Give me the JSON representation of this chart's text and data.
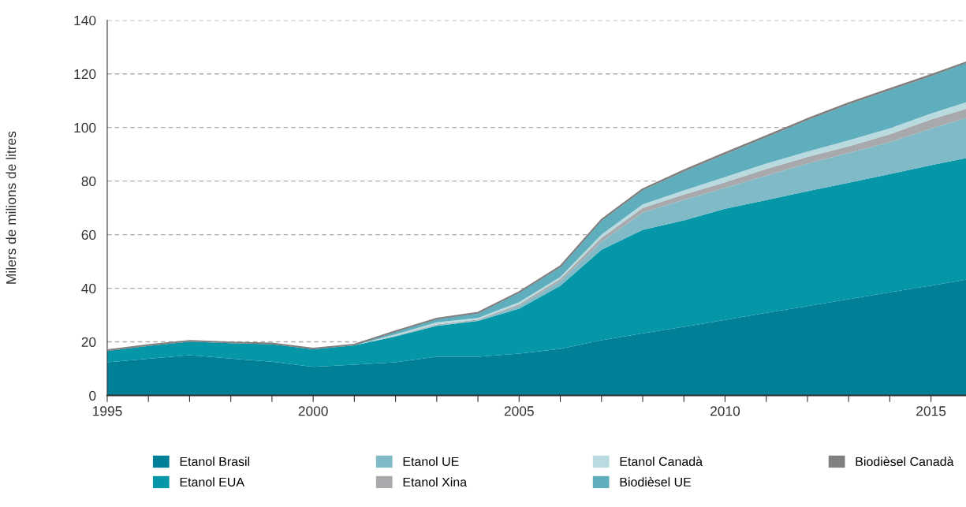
{
  "chart_data": {
    "type": "area",
    "stacked": true,
    "ylabel": "Milers de milions de litres",
    "x": [
      1995,
      1996,
      1997,
      1998,
      1999,
      2000,
      2001,
      2002,
      2003,
      2004,
      2005,
      2006,
      2007,
      2008,
      2009,
      2010,
      2011,
      2012,
      2013,
      2014,
      2015,
      2015.85
    ],
    "series": [
      {
        "name": "Etanol Brasil",
        "color": "#007f96",
        "values": [
          12.4,
          13.7,
          15.0,
          13.8,
          12.6,
          10.7,
          11.5,
          12.4,
          14.4,
          14.4,
          15.6,
          17.4,
          20.6,
          23.2,
          25.6,
          28.2,
          30.8,
          33.3,
          35.9,
          38.5,
          41.0,
          43.2
        ]
      },
      {
        "name": "Etanol EUA",
        "color": "#0596a8",
        "values": [
          4.2,
          4.8,
          5.1,
          5.7,
          6.5,
          6.5,
          7.2,
          9.6,
          11.6,
          13.4,
          16.8,
          23.5,
          33.8,
          38.6,
          39.7,
          41.5,
          42.1,
          42.9,
          43.5,
          44.1,
          44.9,
          45.4
        ]
      },
      {
        "name": "Etanol UE",
        "color": "#80bac6",
        "values": [
          0,
          0,
          0,
          0,
          0,
          0,
          0,
          0.2,
          0.2,
          0.2,
          0.9,
          1.7,
          3.0,
          6.4,
          7.7,
          7.8,
          9.1,
          10.3,
          11.1,
          11.9,
          13.6,
          14.9
        ]
      },
      {
        "name": "Etanol Xina",
        "color": "#a7a9ac",
        "values": [
          0,
          0,
          0,
          0,
          0,
          0,
          0,
          0.2,
          0.3,
          0.3,
          0.7,
          0.9,
          1.4,
          1.8,
          2.0,
          2.0,
          2.5,
          2.5,
          2.5,
          3.0,
          3.5,
          3.5
        ]
      },
      {
        "name": "Etanol Canadà",
        "color": "#b9dbe0",
        "values": [
          0,
          0,
          0,
          0,
          0,
          0,
          0,
          0.4,
          0.8,
          0.6,
          0.8,
          0.7,
          1.2,
          1.3,
          1.5,
          2.0,
          2.0,
          2.0,
          2.2,
          2.2,
          2.2,
          2.4
        ]
      },
      {
        "name": "Biodièsel UE",
        "color": "#5eaebd",
        "values": [
          0.2,
          0.2,
          0.2,
          0.2,
          0.2,
          0.2,
          0.2,
          1.0,
          1.1,
          1.7,
          3.5,
          3.6,
          5.2,
          5.3,
          7.0,
          8.5,
          9.8,
          11.7,
          13.4,
          14.2,
          13.9,
          14.6
        ]
      },
      {
        "name": "Biodièsel Canadà",
        "color": "#808080",
        "values": [
          0.1,
          0.1,
          0.1,
          0.1,
          0.1,
          0.1,
          0.1,
          0.2,
          0.3,
          0.3,
          0.3,
          0.4,
          0.4,
          0.4,
          0.5,
          0.5,
          0.5,
          0.5,
          0.5,
          0.5,
          0.5,
          0.3
        ]
      }
    ],
    "xlim": [
      1995,
      2015.85
    ],
    "xticks": [
      1995,
      {
        "value": 1996,
        "label": null
      },
      {
        "value": 1997,
        "label": null
      },
      {
        "value": 1998,
        "label": null
      },
      {
        "value": 1999,
        "label": null
      },
      2000,
      {
        "value": 2001,
        "label": null
      },
      {
        "value": 2002,
        "label": null
      },
      {
        "value": 2003,
        "label": null
      },
      {
        "value": 2004,
        "label": null
      },
      2005,
      {
        "value": 2006,
        "label": null
      },
      {
        "value": 2007,
        "label": null
      },
      {
        "value": 2008,
        "label": null
      },
      {
        "value": 2009,
        "label": null
      },
      2010,
      {
        "value": 2011,
        "label": null
      },
      {
        "value": 2012,
        "label": null
      },
      {
        "value": 2013,
        "label": null
      },
      {
        "value": 2014,
        "label": null
      },
      2015
    ],
    "ylim": [
      0,
      140
    ],
    "yticks": [
      0,
      20,
      40,
      60,
      80,
      100,
      120,
      140
    ],
    "grid": "y",
    "legend": "bottom"
  }
}
